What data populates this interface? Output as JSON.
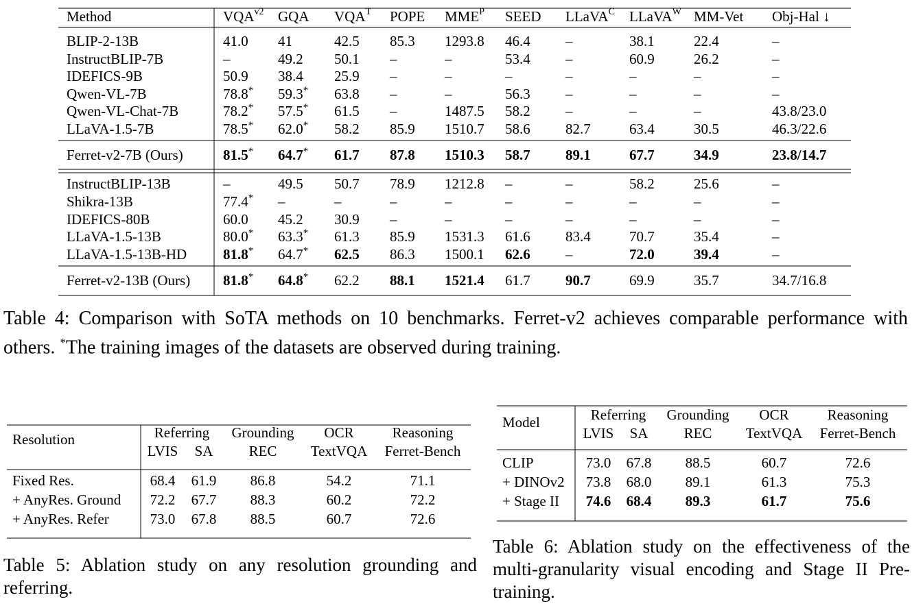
{
  "table4": {
    "header": [
      {
        "text": "Method"
      },
      {
        "text": "VQA",
        "sup": "v2"
      },
      {
        "text": "GQA"
      },
      {
        "text": "VQA",
        "sup": "T"
      },
      {
        "text": "POPE"
      },
      {
        "text": "MME",
        "sup": "P"
      },
      {
        "text": "SEED"
      },
      {
        "text": "LLaVA",
        "sup": "C"
      },
      {
        "text": "LLaVA",
        "sup": "W"
      },
      {
        "text": "MM-Vet"
      },
      {
        "text": "Obj-Hal ↓"
      }
    ],
    "star_mark": "*",
    "groups": [
      {
        "rows": [
          {
            "cells": [
              "BLIP-2-13B",
              "41.0",
              "41",
              "42.5",
              "85.3",
              "1293.8",
              "46.4",
              "–",
              "38.1",
              "22.4",
              "–"
            ],
            "star": [],
            "bold": []
          },
          {
            "cells": [
              "InstructBLIP-7B",
              "–",
              "49.2",
              "50.1",
              "–",
              "–",
              "53.4",
              "–",
              "60.9",
              "26.2",
              "–"
            ],
            "star": [],
            "bold": []
          },
          {
            "cells": [
              "IDEFICS-9B",
              "50.9",
              "38.4",
              "25.9",
              "–",
              "–",
              "–",
              "–",
              "–",
              "–",
              "–"
            ],
            "star": [],
            "bold": []
          },
          {
            "cells": [
              "Qwen-VL-7B",
              "78.8",
              "59.3",
              "63.8",
              "–",
              "–",
              "56.3",
              "–",
              "–",
              "–",
              "–"
            ],
            "star": [
              1,
              2
            ],
            "bold": []
          },
          {
            "cells": [
              "Qwen-VL-Chat-7B",
              "78.2",
              "57.5",
              "61.5",
              "–",
              "1487.5",
              "58.2",
              "–",
              "–",
              "–",
              "43.8/23.0"
            ],
            "star": [
              1,
              2
            ],
            "bold": []
          },
          {
            "cells": [
              "LLaVA-1.5-7B",
              "78.5",
              "62.0",
              "58.2",
              "85.9",
              "1510.7",
              "58.6",
              "82.7",
              "63.4",
              "30.5",
              "46.3/22.6"
            ],
            "star": [
              1,
              2
            ],
            "bold": []
          }
        ]
      },
      {
        "rows": [
          {
            "cells": [
              "Ferret-v2-7B (Ours)",
              "81.5",
              "64.7",
              "61.7",
              "87.8",
              "1510.3",
              "58.7",
              "89.1",
              "67.7",
              "34.9",
              "23.8/14.7"
            ],
            "star": [
              1,
              2
            ],
            "bold": [
              1,
              2,
              3,
              4,
              5,
              6,
              7,
              8,
              9,
              10
            ]
          }
        ]
      },
      {
        "rows": [
          {
            "cells": [
              "InstructBLIP-13B",
              "–",
              "49.5",
              "50.7",
              "78.9",
              "1212.8",
              "–",
              "–",
              "58.2",
              "25.6",
              "–"
            ],
            "star": [],
            "bold": []
          },
          {
            "cells": [
              "Shikra-13B",
              "77.4",
              "–",
              "–",
              "–",
              "–",
              "–",
              "–",
              "–",
              "–",
              "–"
            ],
            "star": [
              1
            ],
            "bold": []
          },
          {
            "cells": [
              "IDEFICS-80B",
              "60.0",
              "45.2",
              "30.9",
              "–",
              "–",
              "–",
              "–",
              "–",
              "–",
              "–"
            ],
            "star": [],
            "bold": []
          },
          {
            "cells": [
              "LLaVA-1.5-13B",
              "80.0",
              "63.3",
              "61.3",
              "85.9",
              "1531.3",
              "61.6",
              "83.4",
              "70.7",
              "35.4",
              "–"
            ],
            "star": [
              1,
              2
            ],
            "bold": []
          },
          {
            "cells": [
              "LLaVA-1.5-13B-HD",
              "81.8",
              "64.7",
              "62.5",
              "86.3",
              "1500.1",
              "62.6",
              "–",
              "72.0",
              "39.4",
              "–"
            ],
            "star": [
              1,
              2
            ],
            "bold": [
              1,
              3,
              6,
              8,
              9
            ]
          }
        ]
      },
      {
        "rows": [
          {
            "cells": [
              "Ferret-v2-13B (Ours)",
              "81.8",
              "64.8",
              "62.2",
              "88.1",
              "1521.4",
              "61.7",
              "90.7",
              "69.9",
              "35.7",
              "34.7/16.8"
            ],
            "star": [
              1,
              2
            ],
            "bold": [
              1,
              2,
              4,
              5,
              7
            ]
          }
        ]
      }
    ],
    "caption": {
      "label": "Table 4:",
      "text": "Comparison with SoTA methods on 10 benchmarks. Ferret-v2 achieves comparable performance with others.",
      "note_mark": "*",
      "note": "The training images of the datasets are observed during training."
    }
  },
  "table5": {
    "header": {
      "first": "Resolution",
      "groups": [
        "Referring",
        "Grounding",
        "OCR",
        "Reasoning"
      ],
      "subs": [
        "LVIS",
        "SA",
        "REC",
        "TextVQA",
        "Ferret-Bench"
      ]
    },
    "rows": [
      {
        "cells": [
          "Fixed Res.",
          "68.4",
          "61.9",
          "86.8",
          "54.2",
          "71.1"
        ],
        "bold": []
      },
      {
        "cells": [
          "+ AnyRes. Ground",
          "72.2",
          "67.7",
          "88.3",
          "60.2",
          "72.2"
        ],
        "bold": []
      },
      {
        "cells": [
          "+ AnyRes. Refer",
          "73.0",
          "67.8",
          "88.5",
          "60.7",
          "72.6"
        ],
        "bold": []
      }
    ],
    "caption": {
      "label": "Table 5:",
      "text": "Ablation study on any resolution grounding and referring."
    }
  },
  "table6": {
    "header": {
      "first": "Model",
      "groups": [
        "Referring",
        "Grounding",
        "OCR",
        "Reasoning"
      ],
      "subs": [
        "LVIS",
        "SA",
        "REC",
        "TextVQA",
        "Ferret-Bench"
      ]
    },
    "rows": [
      {
        "cells": [
          "CLIP",
          "73.0",
          "67.8",
          "88.5",
          "60.7",
          "72.6"
        ],
        "bold": []
      },
      {
        "cells": [
          "+ DINOv2",
          "73.8",
          "68.0",
          "89.1",
          "61.3",
          "75.3"
        ],
        "bold": []
      },
      {
        "cells": [
          "+ Stage II",
          "74.6",
          "68.4",
          "89.3",
          "61.7",
          "75.6"
        ],
        "bold": [
          1,
          2,
          3,
          4,
          5
        ]
      }
    ],
    "caption": {
      "label": "Table 6:",
      "text": "Ablation study on the effectiveness of the multi-granularity visual encoding and Stage II Pre-training."
    }
  }
}
